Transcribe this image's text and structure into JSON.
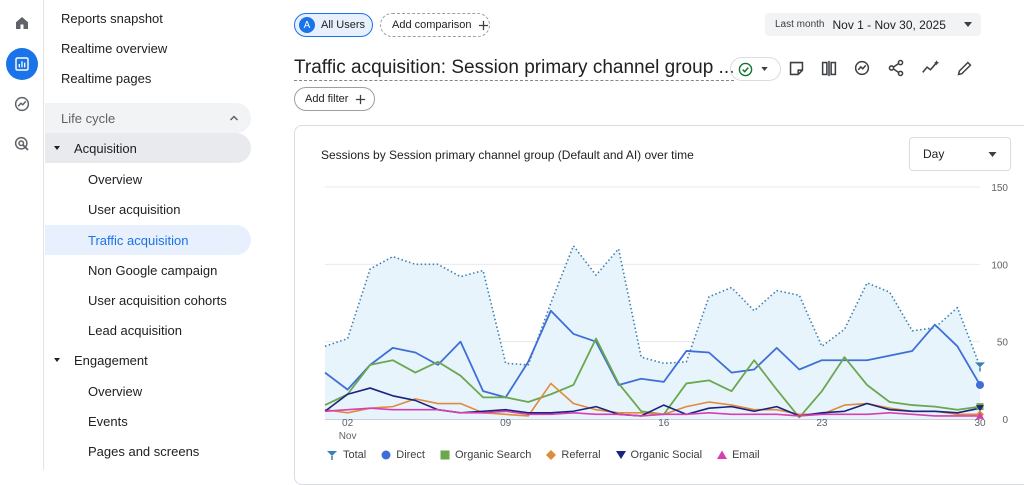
{
  "rail": {
    "icons": [
      "home-icon",
      "reports-icon",
      "explore-icon",
      "advertising-icon"
    ]
  },
  "sidebar": {
    "items": [
      {
        "label": "Reports snapshot"
      },
      {
        "label": "Realtime overview"
      },
      {
        "label": "Realtime pages"
      }
    ],
    "section": "Life cycle",
    "acquisition": {
      "label": "Acquisition",
      "children": [
        "Overview",
        "User acquisition",
        "Traffic acquisition",
        "Non Google campaign",
        "User acquisition cohorts",
        "Lead acquisition"
      ]
    },
    "engagement": {
      "label": "Engagement",
      "children": [
        "Overview",
        "Events",
        "Pages and screens"
      ]
    }
  },
  "header": {
    "segment_avatar": "A",
    "segment": "All Users",
    "add_comparison": "Add comparison",
    "date_prefix": "Last month",
    "date_range": "Nov 1 - Nov 30, 2025",
    "title": "Traffic acquisition: Session primary channel group ...",
    "add_filter": "Add filter"
  },
  "card": {
    "title": "Sessions by Session primary channel group (Default and AI) over time",
    "granularity": "Day"
  },
  "colors": {
    "total": "#3a7fb5",
    "direct": "#3f6fd6",
    "organic_search": "#6aa84f",
    "referral": "#e08a3c",
    "organic_social": "#1a237e",
    "email": "#d63fb0",
    "fill": "#e8f4fc",
    "accent": "#1a73e8"
  },
  "chart_data": {
    "type": "line",
    "title": "Sessions by Session primary channel group (Default and AI) over time",
    "x": [
      1,
      2,
      3,
      4,
      5,
      6,
      7,
      8,
      9,
      10,
      11,
      12,
      13,
      14,
      15,
      16,
      17,
      18,
      19,
      20,
      21,
      22,
      23,
      24,
      25,
      26,
      27,
      28,
      29,
      30
    ],
    "x_tick_labels": [
      "02",
      "Nov",
      "09",
      "16",
      "23",
      "30"
    ],
    "y_ticks": [
      "0",
      "50",
      "100",
      "150"
    ],
    "ylim": [
      0,
      150
    ],
    "series": [
      {
        "name": "Total",
        "values": [
          47,
          52,
          97,
          105,
          100,
          100,
          92,
          96,
          36,
          35,
          75,
          112,
          93,
          110,
          40,
          36,
          37,
          79,
          85,
          70,
          83,
          80,
          47,
          58,
          88,
          82,
          57,
          59,
          72,
          34
        ]
      },
      {
        "name": "Direct",
        "values": [
          30,
          19,
          35,
          46,
          43,
          35,
          50,
          18,
          14,
          37,
          70,
          55,
          50,
          22,
          26,
          24,
          44,
          43,
          30,
          32,
          46,
          32,
          38,
          38,
          38,
          41,
          44,
          61,
          47,
          22
        ]
      },
      {
        "name": "Organic Search",
        "values": [
          9,
          16,
          35,
          38,
          30,
          37,
          28,
          14,
          14,
          11,
          16,
          22,
          52,
          23,
          5,
          3,
          23,
          25,
          18,
          38,
          19,
          1,
          18,
          40,
          22,
          11,
          9,
          8,
          6,
          8
        ]
      },
      {
        "name": "Referral",
        "values": [
          6,
          4,
          7,
          8,
          13,
          10,
          10,
          4,
          3,
          2,
          23,
          10,
          6,
          4,
          4,
          3,
          8,
          11,
          9,
          6,
          6,
          3,
          3,
          9,
          10,
          7,
          5,
          5,
          3,
          3
        ]
      },
      {
        "name": "Organic Social",
        "values": [
          5,
          16,
          20,
          15,
          12,
          6,
          4,
          5,
          6,
          4,
          4,
          5,
          8,
          3,
          2,
          9,
          3,
          7,
          8,
          5,
          8,
          2,
          4,
          5,
          10,
          6,
          5,
          5,
          4,
          7
        ]
      },
      {
        "name": "Email",
        "values": [
          5,
          6,
          7,
          6,
          6,
          6,
          4,
          4,
          5,
          3,
          3,
          4,
          3,
          3,
          2,
          3,
          3,
          4,
          3,
          3,
          3,
          2,
          3,
          3,
          3,
          4,
          3,
          2,
          2,
          2
        ]
      }
    ],
    "legend": [
      "Total",
      "Direct",
      "Organic Search",
      "Referral",
      "Organic Social",
      "Email"
    ]
  }
}
